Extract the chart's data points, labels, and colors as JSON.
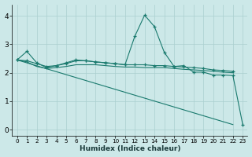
{
  "background_color": "#cce8e8",
  "grid_color": "#aacfcf",
  "line_color": "#1a7a6e",
  "xlabel": "Humidex (Indice chaleur)",
  "xlim": [
    -0.5,
    23.5
  ],
  "ylim": [
    -0.2,
    4.4
  ],
  "yticks": [
    0,
    1,
    2,
    3,
    4
  ],
  "xtick_labels": [
    "0",
    "1",
    "2",
    "3",
    "4",
    "5",
    "6",
    "7",
    "8",
    "9",
    "10",
    "11",
    "12",
    "13",
    "14",
    "15",
    "16",
    "17",
    "18",
    "19",
    "20",
    "21",
    "22",
    "23"
  ],
  "line1_x": [
    0,
    1,
    2,
    3,
    4,
    5,
    6,
    7,
    8,
    9,
    10,
    11,
    12,
    13,
    14,
    15,
    16,
    17,
    18,
    19,
    20,
    21,
    22,
    23
  ],
  "line1_y": [
    2.45,
    2.75,
    2.35,
    2.18,
    2.25,
    2.35,
    2.45,
    2.42,
    2.38,
    2.35,
    2.32,
    2.28,
    3.28,
    4.02,
    3.62,
    2.72,
    2.22,
    2.25,
    2.02,
    2.02,
    1.92,
    1.92,
    1.9,
    0.18
  ],
  "line2_x": [
    0,
    1,
    2,
    3,
    4,
    5,
    6,
    7,
    8,
    9,
    10,
    11,
    12,
    13,
    14,
    15,
    16,
    17,
    18,
    19,
    20,
    21,
    22
  ],
  "line2_y": [
    2.45,
    2.42,
    2.32,
    2.22,
    2.25,
    2.32,
    2.42,
    2.42,
    2.38,
    2.35,
    2.32,
    2.28,
    2.28,
    2.28,
    2.25,
    2.25,
    2.22,
    2.2,
    2.18,
    2.15,
    2.1,
    2.08,
    2.05
  ],
  "line3_x": [
    0,
    1,
    2,
    3,
    4,
    5,
    6,
    7,
    8,
    9,
    10,
    11,
    12,
    13,
    14,
    15,
    16,
    17,
    18,
    19,
    20,
    21,
    22
  ],
  "line3_y": [
    2.45,
    2.38,
    2.22,
    2.15,
    2.18,
    2.22,
    2.28,
    2.28,
    2.28,
    2.25,
    2.22,
    2.2,
    2.2,
    2.18,
    2.18,
    2.18,
    2.15,
    2.12,
    2.1,
    2.08,
    2.05,
    2.02,
    2.0
  ],
  "line4_x": [
    0,
    22
  ],
  "line4_y": [
    2.45,
    0.18
  ]
}
